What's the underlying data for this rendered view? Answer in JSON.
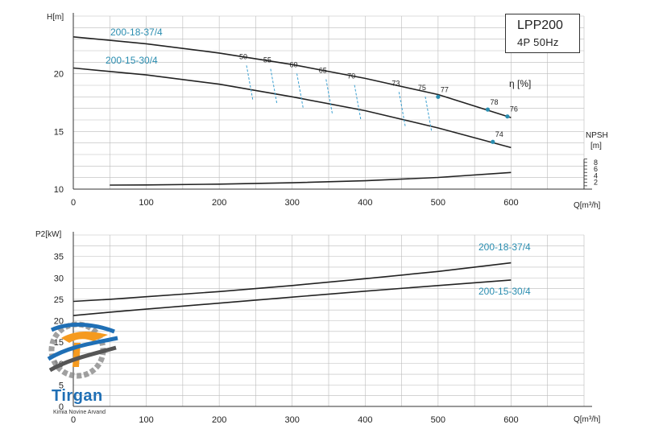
{
  "chart_data": [
    {
      "type": "line",
      "ylabel": "H[m]",
      "xlabel": "Q[m³/h]",
      "xlim": [
        0,
        700
      ],
      "ylim": [
        10,
        25
      ],
      "x_ticks": [
        0,
        100,
        200,
        300,
        400,
        500,
        600
      ],
      "y_ticks": [
        10,
        15,
        20
      ],
      "grid": true,
      "series": [
        {
          "name": "200-18-37/4",
          "x": [
            0,
            50,
            100,
            200,
            300,
            400,
            500,
            600
          ],
          "y": [
            23.2,
            22.9,
            22.6,
            21.8,
            20.8,
            19.6,
            18.2,
            16.2
          ]
        },
        {
          "name": "200-15-30/4",
          "x": [
            0,
            50,
            100,
            200,
            300,
            400,
            500,
            600
          ],
          "y": [
            20.5,
            20.2,
            19.9,
            19.1,
            18.0,
            16.8,
            15.3,
            13.6
          ]
        }
      ],
      "efficiency_label": "η [%]",
      "efficiency_points": [
        {
          "label": "50",
          "x": 233,
          "y": 21.0
        },
        {
          "label": "55",
          "x": 266,
          "y": 20.7
        },
        {
          "label": "60",
          "x": 302,
          "y": 20.3
        },
        {
          "label": "65",
          "x": 342,
          "y": 19.8
        },
        {
          "label": "70",
          "x": 381,
          "y": 19.3
        },
        {
          "label": "73",
          "x": 442,
          "y": 18.7
        },
        {
          "label": "75",
          "x": 478,
          "y": 18.3
        },
        {
          "label": "77",
          "x": 500,
          "y": 18.0
        },
        {
          "label": "78",
          "x": 568,
          "y": 16.9
        },
        {
          "label": "76",
          "x": 595,
          "y": 16.3
        },
        {
          "label": "74",
          "x": 575,
          "y": 14.1
        }
      ],
      "npsh": {
        "label": "NPSH",
        "unit": "[m]",
        "ticks": [
          2,
          4,
          6,
          8
        ],
        "x": [
          50,
          100,
          200,
          300,
          400,
          500,
          600
        ],
        "y": [
          1.2,
          1.25,
          1.5,
          1.9,
          2.5,
          3.5,
          5.0
        ]
      }
    },
    {
      "type": "line",
      "ylabel": "P2[kW]",
      "xlabel": "Q[m³/h]",
      "xlim": [
        0,
        700
      ],
      "ylim": [
        0,
        40
      ],
      "x_ticks": [
        0,
        100,
        200,
        300,
        400,
        500,
        600
      ],
      "y_ticks": [
        0,
        5,
        10,
        15,
        20,
        25,
        30,
        35
      ],
      "grid": true,
      "series": [
        {
          "name": "200-18-37/4",
          "x": [
            0,
            50,
            100,
            200,
            300,
            400,
            500,
            600
          ],
          "y": [
            24.5,
            25.0,
            25.6,
            26.8,
            28.2,
            29.8,
            31.5,
            33.5
          ]
        },
        {
          "name": "200-15-30/4",
          "x": [
            0,
            50,
            100,
            200,
            300,
            400,
            500,
            600
          ],
          "y": [
            21.2,
            22.0,
            22.7,
            24.1,
            25.5,
            26.9,
            28.2,
            29.5
          ]
        }
      ]
    }
  ],
  "title": {
    "main": "LPP200",
    "sub": "4P  50Hz"
  },
  "logo": {
    "name": "Tirgan",
    "subtitle": "Kimia Novine Arvand"
  },
  "colors": {
    "curve": "#222222",
    "label": "#2a8db0",
    "marker": "#2a8db0",
    "grid": "#bbbbbb",
    "dash": "#3a9fd0"
  }
}
